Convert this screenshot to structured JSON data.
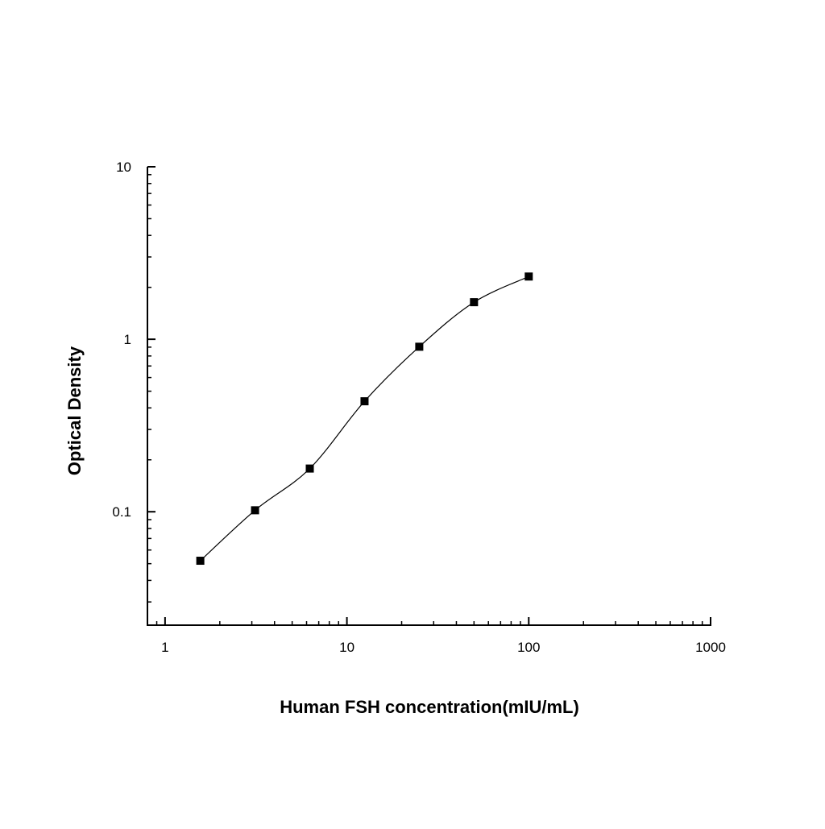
{
  "chart_data": {
    "type": "scatter",
    "x_label": "Human FSH concentration(mIU/mL)",
    "y_label": "Optical Density",
    "x": [
      1.5625,
      3.125,
      6.25,
      12.5,
      25,
      50,
      100
    ],
    "series": [
      {
        "color": "#000000",
        "values": [
          0.052,
          0.102,
          0.178,
          0.437,
          0.905,
          1.64,
          2.31
        ]
      }
    ],
    "fit_curve": true,
    "xlim": [
      0.8,
      1000
    ],
    "ylim": [
      0.022,
      10
    ],
    "xticks": [
      1,
      10,
      100,
      1000
    ],
    "yticks": [
      0.1,
      1,
      10
    ],
    "xscale": "log",
    "yscale": "log"
  }
}
